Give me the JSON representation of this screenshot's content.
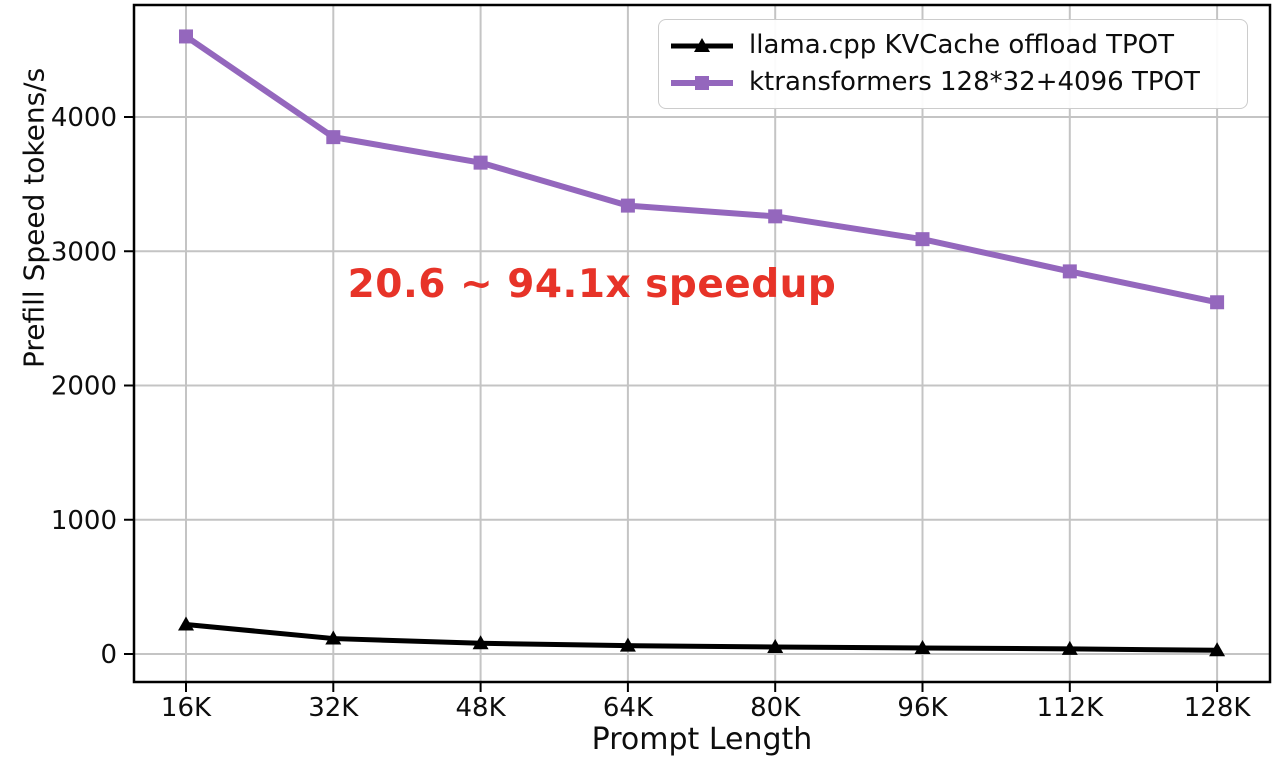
{
  "chart_data": {
    "type": "line",
    "title": "",
    "xlabel": "Prompt Length",
    "ylabel": "Prefill Speed tokens/s",
    "categories": [
      "16K",
      "32K",
      "48K",
      "64K",
      "80K",
      "96K",
      "112K",
      "128K"
    ],
    "yticks": [
      0,
      1000,
      2000,
      3000,
      4000
    ],
    "ylim": [
      -210,
      4835
    ],
    "grid": true,
    "legend_position": "upper right",
    "series": [
      {
        "name": "llama.cpp KVCache offload TPOT",
        "color": "#000000",
        "marker": "triangle",
        "line_width": 5,
        "values": [
          220,
          115,
          80,
          62,
          52,
          45,
          38,
          28
        ]
      },
      {
        "name": "ktransformers 128*32+4096 TPOT",
        "color": "#9467bd",
        "marker": "square",
        "line_width": 6,
        "values": [
          4600,
          3850,
          3660,
          3340,
          3260,
          3090,
          2850,
          2620
        ]
      }
    ],
    "annotation": {
      "text": "20.6 ~ 94.1x speedup",
      "color": "#e73328"
    },
    "colors": {
      "grid": "#c4c4c4",
      "spine": "#000000",
      "tick_text": "#0d0d0d",
      "background": "#ffffff"
    }
  }
}
